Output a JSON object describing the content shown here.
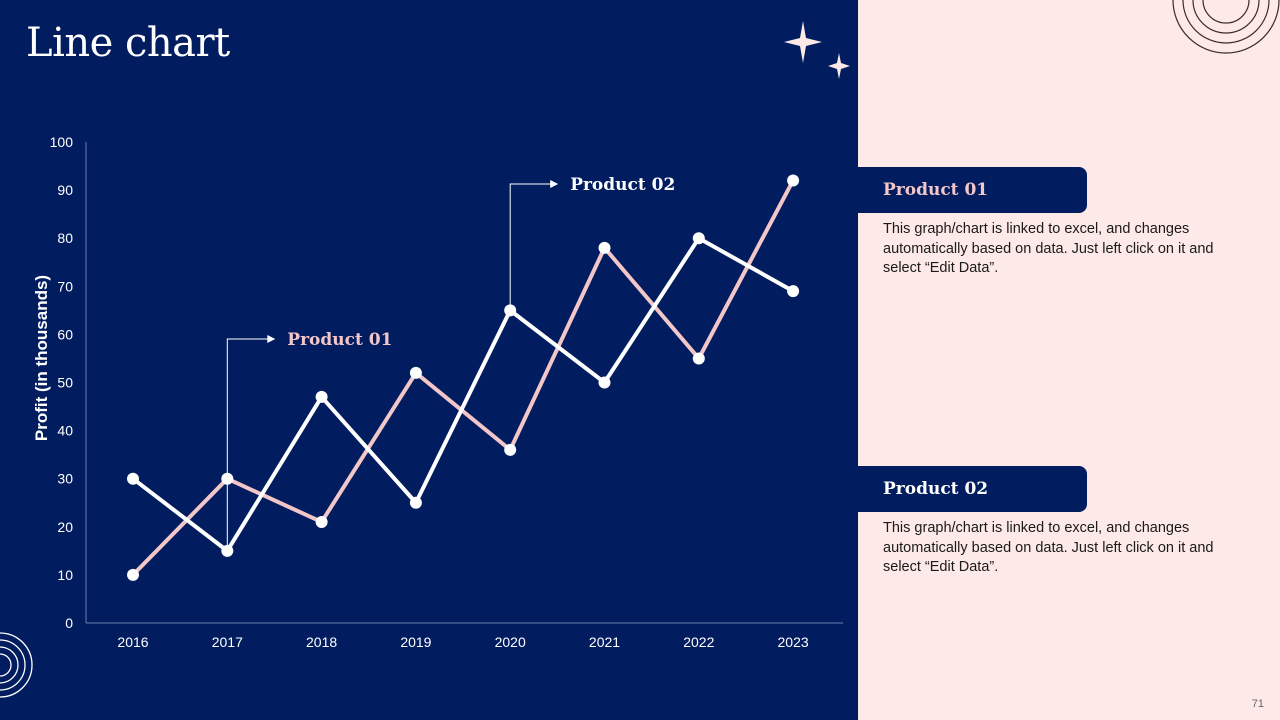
{
  "slide": {
    "title": "Line chart",
    "page_number": "71"
  },
  "colors": {
    "navy": "#021d5f",
    "pink_bg": "#fde9e7",
    "product01_line": "#f3c6c8",
    "product02_line": "#ffffff",
    "product01_label": "#f3c6c8",
    "product02_label": "#ffffff"
  },
  "callouts": [
    {
      "label": "Product 01",
      "series": "Product 01"
    },
    {
      "label": "Product 02",
      "series": "Product 02"
    }
  ],
  "info_panels": [
    {
      "title": "Product 01",
      "text": "This graph/chart is linked to excel, and changes automatically based on data. Just left click on it and select “Edit Data”."
    },
    {
      "title": "Product 02",
      "text": "This graph/chart is linked to excel, and changes automatically based on data. Just left click on it and select “Edit Data”."
    }
  ],
  "decorations": [
    "sparkle-icon",
    "sparkle-small-icon",
    "concentric-arcs-icon"
  ],
  "chart_data": {
    "type": "line",
    "title": "",
    "xlabel": "",
    "ylabel": "Profit (in thousands)",
    "categories": [
      "2016",
      "2017",
      "2018",
      "2019",
      "2020",
      "2021",
      "2022",
      "2023"
    ],
    "ylim": [
      0,
      100
    ],
    "yticks": [
      0,
      10,
      20,
      30,
      40,
      50,
      60,
      70,
      80,
      90,
      100
    ],
    "grid": false,
    "series": [
      {
        "name": "Product 01",
        "values": [
          10,
          30,
          21,
          52,
          36,
          78,
          55,
          92
        ]
      },
      {
        "name": "Product 02",
        "values": [
          30,
          15,
          47,
          25,
          65,
          50,
          80,
          69
        ]
      }
    ]
  }
}
